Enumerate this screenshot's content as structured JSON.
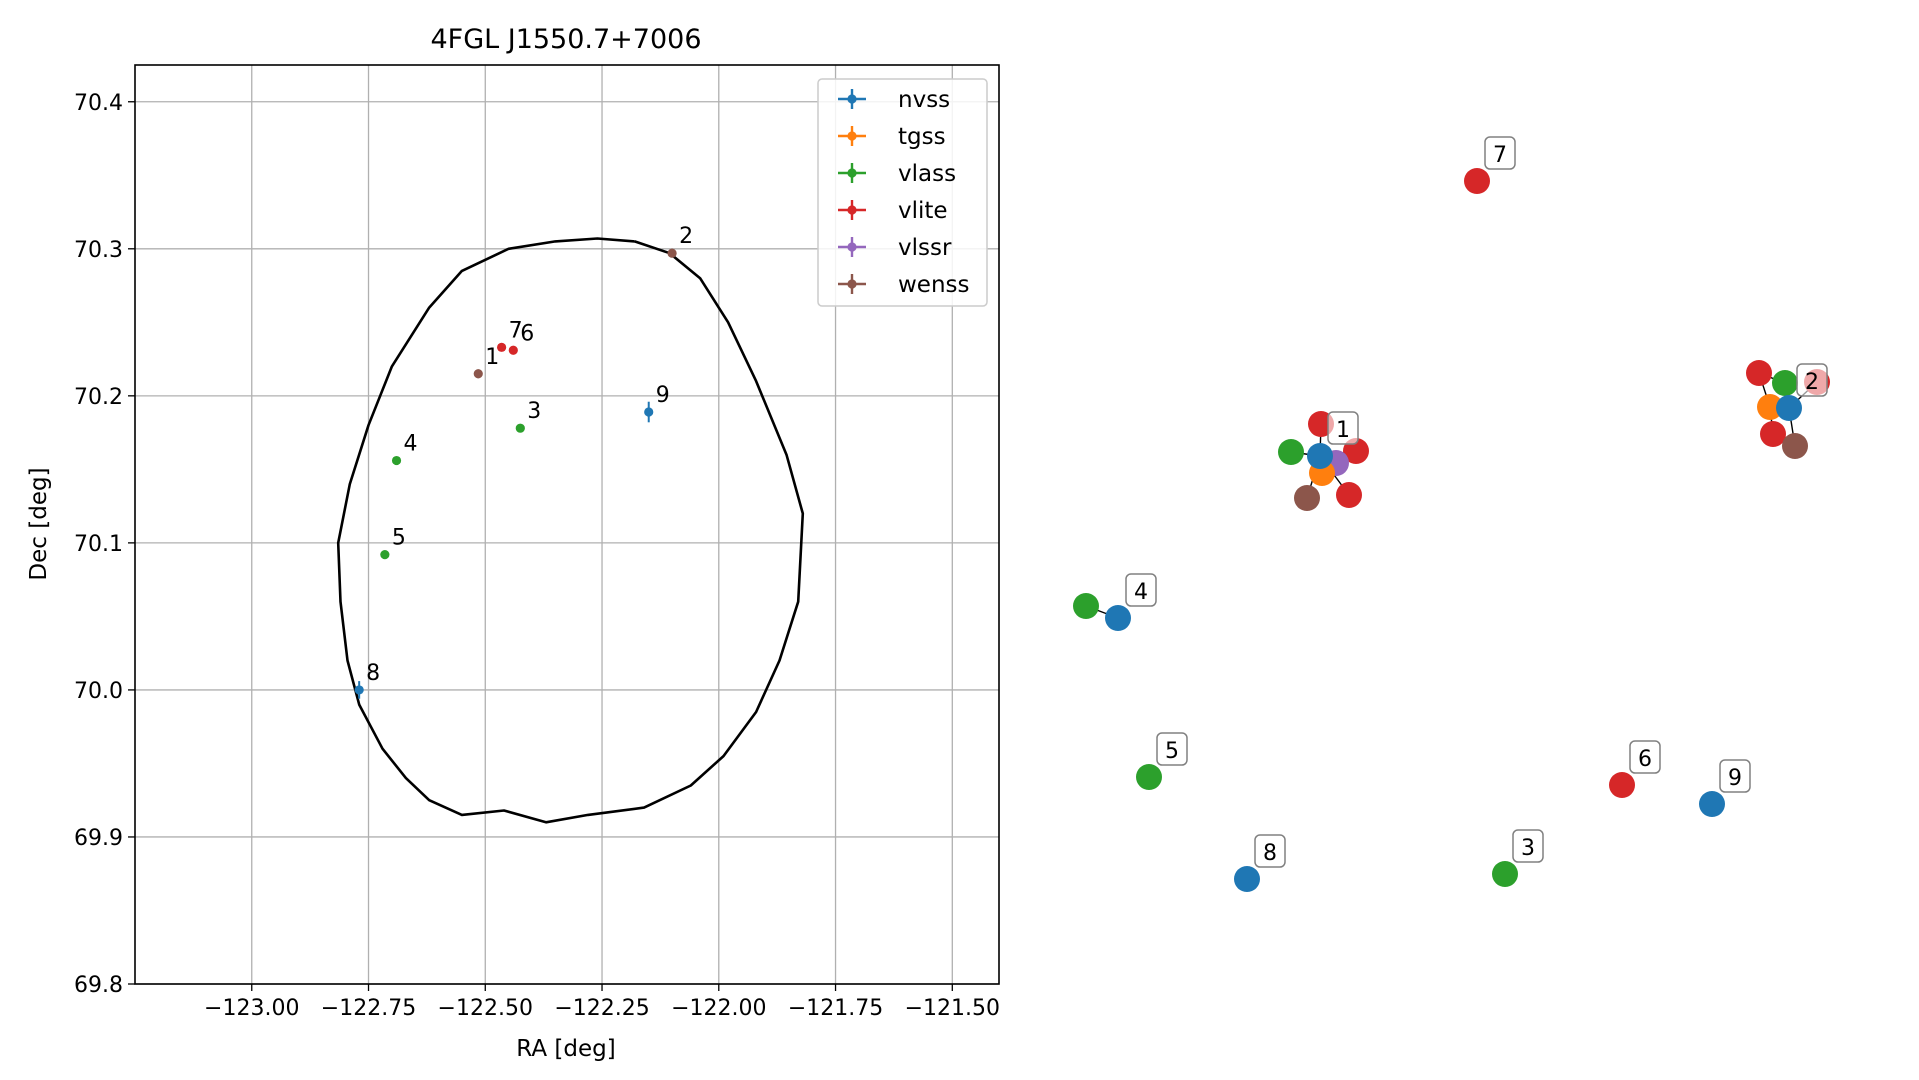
{
  "chart_data": [
    {
      "type": "scatter",
      "title": "4FGL J1550.7+7006",
      "xlabel": "RA [deg]",
      "ylabel": "Dec [deg]",
      "xlim": [
        -123.25,
        -121.4
      ],
      "ylim": [
        69.8,
        70.425
      ],
      "grid": true,
      "legend": "top-right",
      "x_ticks": [
        -123.0,
        -122.75,
        -122.5,
        -122.25,
        -122.0,
        -121.75,
        -121.5
      ],
      "x_tick_labels": [
        "−123.00",
        "−122.75",
        "−122.50",
        "−122.25",
        "−122.00",
        "−121.75",
        "−121.50"
      ],
      "y_ticks": [
        69.8,
        69.9,
        70.0,
        70.1,
        70.2,
        70.3,
        70.4
      ],
      "y_tick_labels": [
        "69.8",
        "69.9",
        "70.0",
        "70.1",
        "70.2",
        "70.3",
        "70.4"
      ],
      "series": [
        {
          "name": "nvss",
          "color": "#1f77b4",
          "points": [
            {
              "x": -122.77,
              "y": 70.0,
              "yerr": 0.006,
              "label": "8"
            },
            {
              "x": -122.15,
              "y": 70.189,
              "yerr": 0.007,
              "label": "9"
            }
          ]
        },
        {
          "name": "tgss",
          "color": "#ff7f0e",
          "points": []
        },
        {
          "name": "vlass",
          "color": "#2ca02c",
          "points": [
            {
              "x": -122.425,
              "y": 70.178,
              "yerr": 0.002,
              "label": "3"
            },
            {
              "x": -122.69,
              "y": 70.156,
              "yerr": 0.002,
              "label": "4"
            },
            {
              "x": -122.715,
              "y": 70.092,
              "yerr": 0.002,
              "label": "5"
            }
          ]
        },
        {
          "name": "vlite",
          "color": "#d62728",
          "points": [
            {
              "x": -122.465,
              "y": 70.233,
              "yerr": 0.002,
              "label": "7"
            },
            {
              "x": -122.44,
              "y": 70.231,
              "yerr": 0.002,
              "label": "6"
            }
          ]
        },
        {
          "name": "vlssr",
          "color": "#9467bd",
          "points": []
        },
        {
          "name": "wenss",
          "color": "#8c564b",
          "points": [
            {
              "x": -122.515,
              "y": 70.215,
              "yerr": 0.003,
              "label": "1"
            },
            {
              "x": -122.1,
              "y": 70.297,
              "yerr": 0.003,
              "label": "2"
            }
          ]
        }
      ],
      "ellipse": {
        "color": "#000000",
        "center": [
          -122.27,
          70.111
        ],
        "polygon": [
          [
            -122.18,
            70.305
          ],
          [
            -122.105,
            70.297
          ],
          [
            -122.04,
            70.28
          ],
          [
            -121.98,
            70.25
          ],
          [
            -121.92,
            70.21
          ],
          [
            -121.855,
            70.16
          ],
          [
            -121.82,
            70.12
          ],
          [
            -121.83,
            70.06
          ],
          [
            -121.87,
            70.02
          ],
          [
            -121.92,
            69.985
          ],
          [
            -121.99,
            69.955
          ],
          [
            -122.06,
            69.935
          ],
          [
            -122.16,
            69.92
          ],
          [
            -122.28,
            69.915
          ],
          [
            -122.37,
            69.91
          ],
          [
            -122.46,
            69.918
          ],
          [
            -122.55,
            69.915
          ],
          [
            -122.62,
            69.925
          ],
          [
            -122.67,
            69.94
          ],
          [
            -122.72,
            69.96
          ],
          [
            -122.77,
            69.99
          ],
          [
            -122.795,
            70.02
          ],
          [
            -122.81,
            70.06
          ],
          [
            -122.815,
            70.1
          ],
          [
            -122.79,
            70.14
          ],
          [
            -122.75,
            70.18
          ],
          [
            -122.7,
            70.22
          ],
          [
            -122.62,
            70.26
          ],
          [
            -122.55,
            70.285
          ],
          [
            -122.45,
            70.3
          ],
          [
            -122.35,
            70.305
          ],
          [
            -122.26,
            70.307
          ],
          [
            -122.18,
            70.305
          ]
        ]
      }
    },
    {
      "type": "scatter",
      "title": "",
      "colors": {
        "nvss": "#1f77b4",
        "tgss": "#ff7f0e",
        "vlass": "#2ca02c",
        "vlite": "#d62728",
        "vlssr": "#9467bd",
        "wenss": "#8c564b"
      },
      "nodes": [
        {
          "src": "vlite",
          "x": 0.11,
          "y": 0.81,
          "label": "7"
        },
        {
          "src": "vlite",
          "x": 0.1,
          "y": 0.1
        },
        {
          "src": "vlass",
          "x": 0.1,
          "y": 0.1
        },
        {
          "src": "vlite",
          "x": 0.1,
          "y": 0.1
        },
        {
          "src": "tgss",
          "x": 0.1,
          "y": 0.1
        },
        {
          "src": "nvss",
          "x": 0.1,
          "y": 0.1,
          "label": "2"
        },
        {
          "src": "vlite",
          "x": 0.1,
          "y": 0.1
        },
        {
          "src": "wenss",
          "x": 0.1,
          "y": 0.1
        },
        {
          "src": "vlite",
          "x": 0.1,
          "y": 0.1
        },
        {
          "src": "vlite",
          "x": 0.1,
          "y": 0.1
        },
        {
          "src": "vlass",
          "x": 0.1,
          "y": 0.1
        },
        {
          "src": "vlssr",
          "x": 0.1,
          "y": 0.1
        },
        {
          "src": "tgss",
          "x": 0.1,
          "y": 0.1
        },
        {
          "src": "nvss",
          "x": 0.1,
          "y": 0.1,
          "label": "1"
        },
        {
          "src": "wenss",
          "x": 0.1,
          "y": 0.1
        },
        {
          "src": "vlite",
          "x": 0.1,
          "y": 0.1
        },
        {
          "src": "vlass",
          "x": 0.1,
          "y": 0.1
        },
        {
          "src": "nvss",
          "x": 0.1,
          "y": 0.1,
          "label": "4"
        },
        {
          "src": "vlass",
          "x": 0.1,
          "y": 0.1,
          "label": "5"
        },
        {
          "src": "vlite",
          "x": 0.1,
          "y": 0.1,
          "label": "6"
        },
        {
          "src": "nvss",
          "x": 0.1,
          "y": 0.1,
          "label": "9"
        },
        {
          "src": "nvss",
          "x": 0.1,
          "y": 0.1,
          "label": "8"
        },
        {
          "src": "vlass",
          "x": 0.1,
          "y": 0.1,
          "label": "3"
        }
      ]
    }
  ]
}
